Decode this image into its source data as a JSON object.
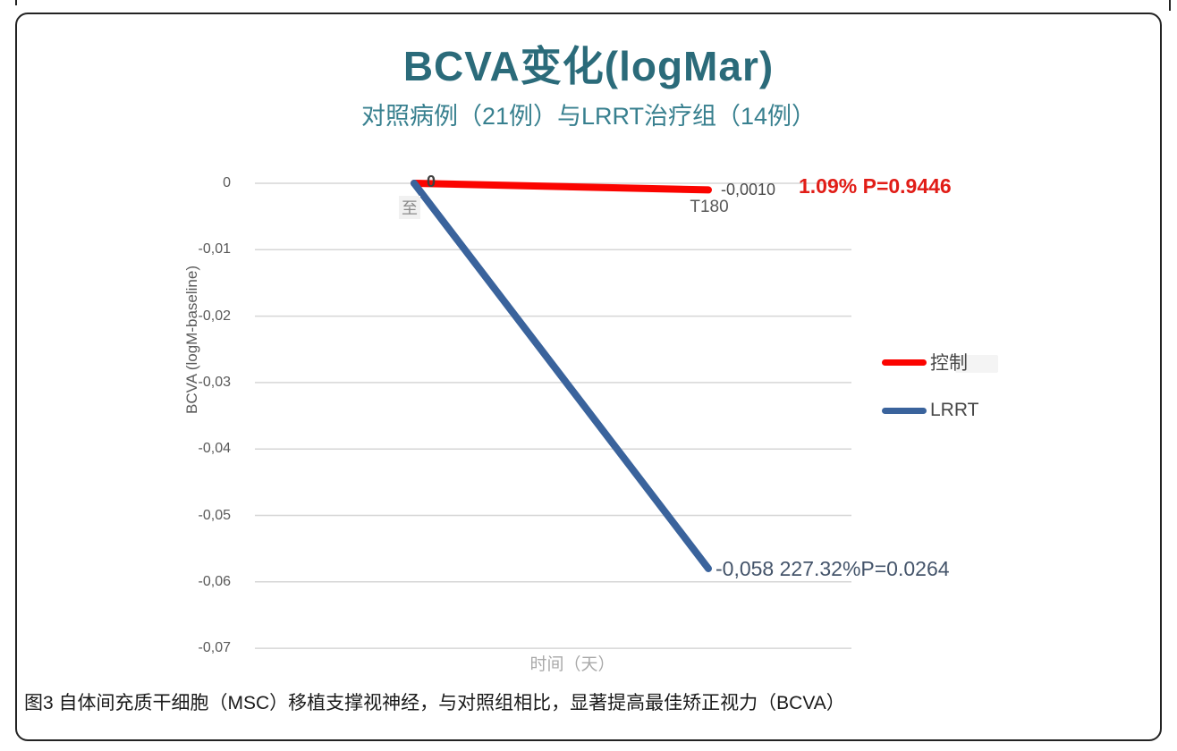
{
  "figure": {
    "caption": "图3 自体间充质干细胞（MSC）移植支撑视神经，与对照组相比，显著提高最佳矫正视力（BCVA）"
  },
  "chart_data": {
    "type": "line",
    "title": "BCVA变化(logMar)",
    "subtitle": "对照病例（21例）与LRRT治疗组（14例）",
    "categories": [
      "至",
      "T180"
    ],
    "series": [
      {
        "name": "控制",
        "color": "#fb0400",
        "values": [
          0,
          -0.001
        ]
      },
      {
        "name": "LRRT",
        "color": "#3a639c",
        "values": [
          0,
          -0.058
        ]
      }
    ],
    "xlabel": "时间（天）",
    "ylabel": "BCVA (logM-baseline)",
    "ylim": [
      -0.07,
      0
    ],
    "yticks": [
      0,
      -0.01,
      -0.02,
      -0.03,
      -0.04,
      -0.05,
      -0.06,
      -0.07
    ],
    "ytick_labels": [
      "0",
      "-0,01",
      "-0,02",
      "-0,03",
      "-0,04",
      "-0,05",
      "-0,06",
      "-0,07"
    ],
    "grid": true,
    "legend_position": "right",
    "annotations": {
      "origin_label": "0",
      "control_value_label": "-0,0010",
      "control_stat_label": "1.09% P=0.9446",
      "lrrt_value_label": "-0,058 227.32%P=0.0264"
    },
    "colors": {
      "title": "#2b6b7a",
      "subtitle": "#38808f",
      "gridline": "#d6d6d6",
      "control_stat_text": "#e11d17",
      "lrrt_stat_text": "#44546a"
    }
  }
}
